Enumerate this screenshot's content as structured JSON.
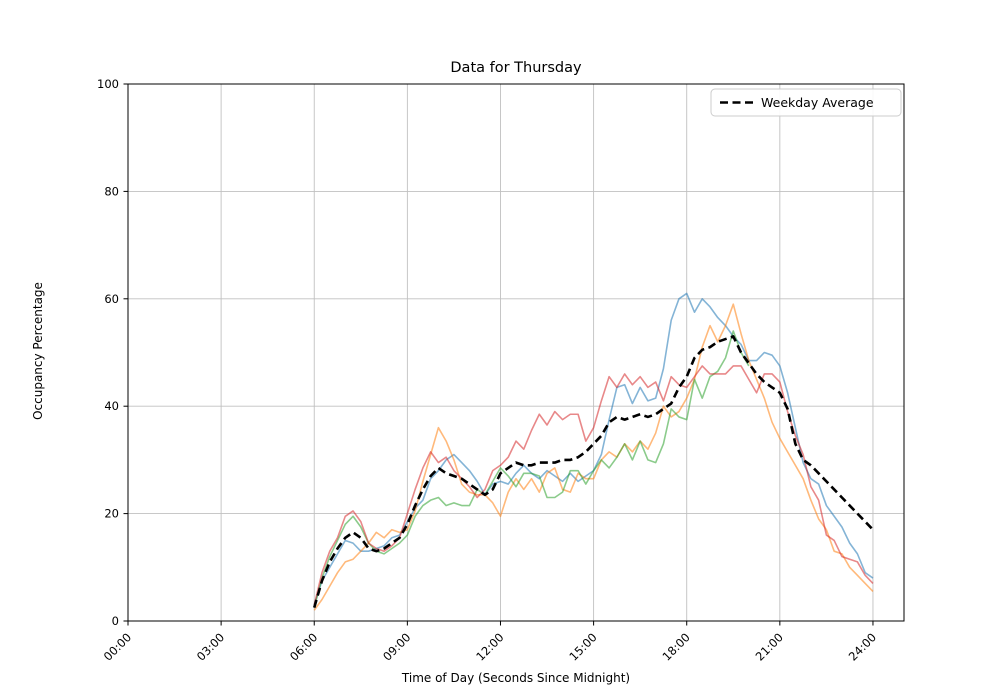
{
  "figure": {
    "background": "#ffffff",
    "grid_color": "#c0c0c0",
    "spine_color": "#000000"
  },
  "chart_data": {
    "type": "line",
    "title": "Data for Thursday",
    "xlabel": "Time of Day (Seconds Since Midnight)",
    "ylabel": "Occupancy Percentage",
    "grid": true,
    "xlim_hours": [
      0,
      25
    ],
    "ylim": [
      0,
      100
    ],
    "x_ticks": {
      "hours": [
        0,
        3,
        6,
        9,
        12,
        15,
        18,
        21,
        24
      ],
      "labels": [
        "00:00",
        "03:00",
        "06:00",
        "09:00",
        "12:00",
        "15:00",
        "18:00",
        "21:00",
        "24:00"
      ],
      "rotation_deg": 45
    },
    "y_ticks": [
      0,
      20,
      40,
      60,
      80,
      100
    ],
    "legend": {
      "position": "upper right",
      "label": "Weekday Average"
    },
    "x_start_hour": 6,
    "x_step_hours": 0.25,
    "series": [
      {
        "name": "series-1",
        "color": "#1f77b4",
        "alpha": 0.55,
        "line_width": 1.6,
        "dash": null,
        "values": [
          3,
          7.5,
          10,
          12.5,
          15,
          14.5,
          13,
          13,
          13.5,
          14,
          15.5,
          16,
          18.5,
          21,
          22.5,
          26.5,
          28,
          30,
          31,
          29.5,
          28,
          26,
          23.5,
          25.5,
          26,
          25.5,
          27.5,
          29,
          27.5,
          26.5,
          28,
          27,
          26,
          27.5,
          26,
          27,
          28,
          31,
          37.5,
          43.5,
          44,
          40.5,
          43.5,
          41,
          41.5,
          47,
          56,
          60,
          61,
          57.5,
          60,
          58.5,
          56.5,
          55,
          53,
          51.5,
          48.5,
          48.5,
          50,
          49.5,
          47.5,
          42.5,
          36,
          29.5,
          26.5,
          25.5,
          21.5,
          19.5,
          17.5,
          14.5,
          12.5,
          9,
          8
        ]
      },
      {
        "name": "series-2",
        "color": "#ff7f0e",
        "alpha": 0.55,
        "line_width": 1.6,
        "dash": null,
        "values": [
          2,
          4,
          6.5,
          9,
          11,
          11.5,
          13,
          14.5,
          16.5,
          15.5,
          17,
          16.5,
          17,
          20.5,
          26,
          31,
          36,
          33.5,
          30,
          25.5,
          24,
          23.5,
          23.5,
          22,
          19.5,
          24,
          26.5,
          24.5,
          26.5,
          24,
          27.5,
          28.5,
          24.5,
          24,
          27.5,
          26.5,
          26.5,
          30,
          31.5,
          30.5,
          33,
          31.5,
          33.5,
          32,
          35,
          40,
          38,
          39,
          41.5,
          45,
          51,
          55,
          52,
          55,
          59,
          53.5,
          48.5,
          45,
          41.5,
          37,
          34,
          31.5,
          29,
          26.5,
          22.5,
          19,
          17,
          13,
          12.5,
          10,
          8.5,
          7,
          5.5
        ]
      },
      {
        "name": "series-3",
        "color": "#2ca02c",
        "alpha": 0.55,
        "line_width": 1.6,
        "dash": null,
        "values": [
          2.5,
          8,
          12,
          15,
          18,
          19.5,
          17.5,
          14.5,
          13,
          12.5,
          13.5,
          14.5,
          16,
          19.5,
          21.5,
          22.5,
          23,
          21.5,
          22,
          21.5,
          21.5,
          24.5,
          23.5,
          26,
          28.5,
          27,
          25,
          27.5,
          27.5,
          27,
          23,
          23,
          24,
          28,
          28,
          25.5,
          28,
          30,
          28.5,
          30.5,
          33,
          30,
          33.5,
          30,
          29.5,
          33,
          39.5,
          38,
          37.5,
          45,
          41.5,
          45.5,
          46.5,
          49,
          54,
          50,
          47.5
        ]
      },
      {
        "name": "series-4",
        "color": "#d62728",
        "alpha": 0.55,
        "line_width": 1.6,
        "dash": null,
        "values": [
          3,
          9,
          13,
          15.5,
          19.5,
          20.5,
          18.5,
          14.5,
          13.5,
          13,
          14,
          15.5,
          20,
          24.5,
          28.5,
          31.5,
          29.5,
          30.5,
          28,
          26.5,
          25,
          23,
          24.5,
          28,
          29,
          30.5,
          33.5,
          32,
          35.5,
          38.5,
          36.5,
          39,
          37.5,
          38.5,
          38.5,
          33.5,
          36,
          41,
          45.5,
          43.5,
          46,
          44,
          45.5,
          43.5,
          44.5,
          41,
          45.5,
          44,
          43.5,
          45.5,
          47.5,
          46,
          46,
          46,
          47.5,
          47.5,
          45,
          42.5,
          46,
          46,
          44.5,
          39,
          34.5,
          31,
          25,
          22.5,
          16,
          15,
          12,
          11.5,
          11,
          8.5,
          7
        ]
      },
      {
        "name": "Weekday Average",
        "color": "#000000",
        "alpha": 1,
        "line_width": 2.6,
        "dash": [
          8,
          4.5
        ],
        "values": [
          2.5,
          7.5,
          11,
          13.5,
          15.5,
          16.5,
          15.5,
          13.5,
          13,
          13.5,
          14.5,
          15.5,
          18,
          21.5,
          24.5,
          27,
          28.5,
          27.5,
          27,
          26.5,
          25.5,
          24.5,
          23.5,
          24.5,
          27.5,
          28.5,
          29.5,
          29,
          29,
          29.5,
          29.5,
          29.5,
          30,
          30,
          30.5,
          31.5,
          33,
          34.5,
          37,
          38,
          37.5,
          38,
          38.5,
          38,
          38.5,
          39.5,
          40.5,
          43.5,
          45.5,
          49,
          50.5,
          51,
          52,
          52.5,
          53,
          50,
          48,
          46,
          44.5,
          43.5,
          42.5,
          39.5,
          33,
          30,
          29,
          27.5,
          26,
          24.5,
          23,
          21.5,
          20,
          18.5,
          17
        ]
      }
    ]
  }
}
